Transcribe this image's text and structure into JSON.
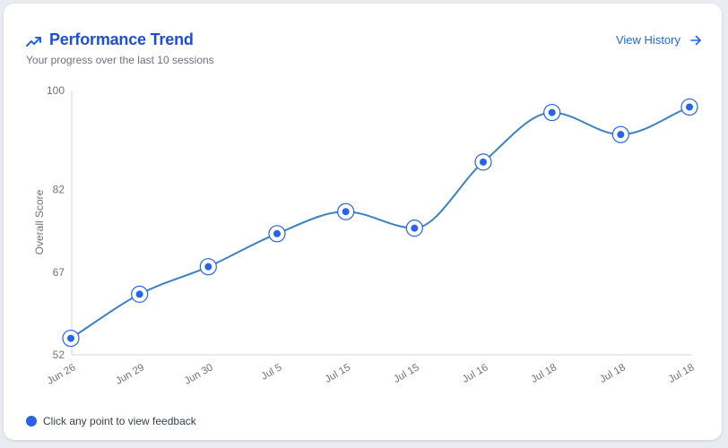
{
  "header": {
    "title": "Performance Trend",
    "subtitle": "Your progress over the last 10 sessions",
    "action_label": "View History",
    "icon": "trending-up-icon",
    "action_icon": "arrow-right-icon"
  },
  "legend": {
    "text": "Click any point to view feedback",
    "color": "#2563eb"
  },
  "colors": {
    "accent": "#2563eb",
    "line": "#3b82c4",
    "title": "#1d4ed8"
  },
  "chart_data": {
    "type": "line",
    "title": "Performance Trend",
    "xlabel": "",
    "ylabel": "Overall Score",
    "categories": [
      "Jun 26",
      "Jun 29",
      "Jun 30",
      "Jul 5",
      "Jul 15",
      "Jul 15",
      "Jul 16",
      "Jul 18",
      "Jul 18",
      "Jul 18"
    ],
    "series": [
      {
        "values": [
          55,
          63,
          68,
          74,
          78,
          75,
          87,
          96,
          92,
          97
        ]
      }
    ],
    "yticks": [
      52,
      67,
      82,
      100
    ],
    "ylim": [
      52,
      100
    ],
    "grid": false,
    "legend": "bottom-left"
  }
}
